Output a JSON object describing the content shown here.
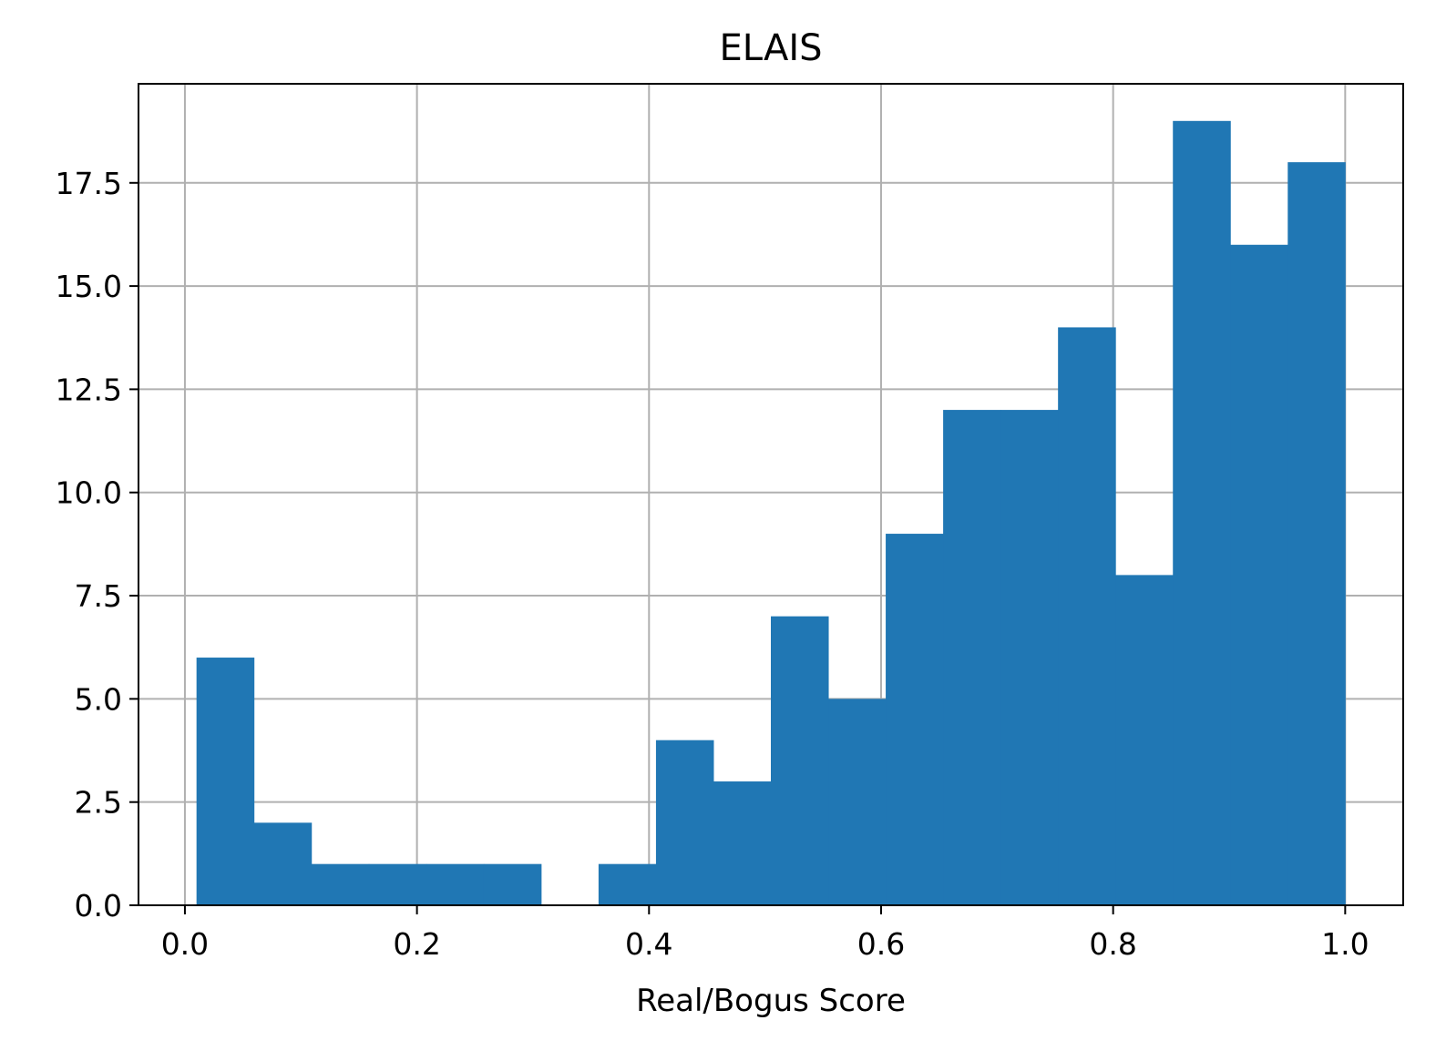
{
  "chart_data": {
    "type": "bar",
    "title": "ELAIS",
    "xlabel": "Real/Bogus Score",
    "ylabel": "",
    "bins": [
      {
        "start": 0.01,
        "end": 0.0595,
        "count": 6
      },
      {
        "start": 0.0595,
        "end": 0.109,
        "count": 2
      },
      {
        "start": 0.109,
        "end": 0.1585,
        "count": 1
      },
      {
        "start": 0.1585,
        "end": 0.208,
        "count": 1
      },
      {
        "start": 0.208,
        "end": 0.2575,
        "count": 1
      },
      {
        "start": 0.2575,
        "end": 0.307,
        "count": 1
      },
      {
        "start": 0.307,
        "end": 0.3565,
        "count": 0
      },
      {
        "start": 0.3565,
        "end": 0.406,
        "count": 1
      },
      {
        "start": 0.406,
        "end": 0.4555,
        "count": 4
      },
      {
        "start": 0.4555,
        "end": 0.505,
        "count": 3
      },
      {
        "start": 0.505,
        "end": 0.5545,
        "count": 7
      },
      {
        "start": 0.5545,
        "end": 0.604,
        "count": 5
      },
      {
        "start": 0.604,
        "end": 0.6535,
        "count": 9
      },
      {
        "start": 0.6535,
        "end": 0.703,
        "count": 12
      },
      {
        "start": 0.703,
        "end": 0.7525,
        "count": 12
      },
      {
        "start": 0.7525,
        "end": 0.802,
        "count": 14
      },
      {
        "start": 0.802,
        "end": 0.8515,
        "count": 8
      },
      {
        "start": 0.8515,
        "end": 0.901,
        "count": 19
      },
      {
        "start": 0.901,
        "end": 0.9505,
        "count": 16
      },
      {
        "start": 0.9505,
        "end": 1.0,
        "count": 18
      }
    ],
    "xlim": [
      -0.04,
      1.05
    ],
    "ylim": [
      0,
      19.9
    ],
    "xticks": [
      0.0,
      0.2,
      0.4,
      0.6,
      0.8,
      1.0
    ],
    "xtick_labels": [
      "0.0",
      "0.2",
      "0.4",
      "0.6",
      "0.8",
      "1.0"
    ],
    "yticks": [
      0.0,
      2.5,
      5.0,
      7.5,
      10.0,
      12.5,
      15.0,
      17.5
    ],
    "ytick_labels": [
      "0.0",
      "2.5",
      "5.0",
      "7.5",
      "10.0",
      "12.5",
      "15.0",
      "17.5"
    ],
    "grid": true,
    "bar_color": "#2077b4"
  }
}
